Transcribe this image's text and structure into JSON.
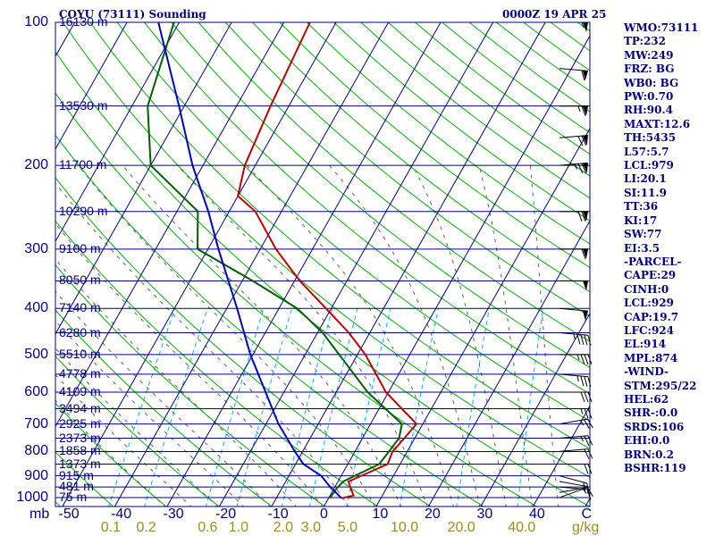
{
  "header": {
    "station": "COYU (73111) Sounding",
    "time": "0000Z 19 APR 25"
  },
  "indices": [
    "WMO:73111",
    "TP:232",
    "MW:249",
    "FRZ: BG",
    "WB0: BG",
    "PW:0.70",
    "RH:90.4",
    "MAXT:12.6",
    "TH:5435",
    "L57:5.7",
    "LCL:979",
    "LI:20.1",
    "SI:11.9",
    "TT:36",
    "KI:17",
    "SW:77",
    "EI:3.5",
    "-PARCEL-",
    "CAPE:29",
    "CINH:0",
    "LCL:929",
    "CAP:19.7",
    "LFC:924",
    "EL:914",
    "MPL:874",
    "-WIND-",
    "STM:295/22",
    "HEL:62",
    "SHR-:0.0",
    "SRDS:106",
    "EHI:0.0",
    "BRN:0.2",
    "BSHR:119"
  ],
  "axes": {
    "pressure_unit": "mb",
    "mixing_unit": "g/kg",
    "pressure_labels": [
      100,
      200,
      300,
      400,
      500,
      600,
      700,
      800,
      900,
      1000
    ],
    "temp_labels": [
      "-50",
      "-40",
      "-30",
      "-20",
      "-10",
      "0",
      "10",
      "20",
      "30",
      "40",
      "C"
    ],
    "temp_values": [
      -50,
      -40,
      -30,
      -20,
      -10,
      0,
      10,
      20,
      30,
      40,
      50
    ],
    "mixing_labels": [
      "0.1",
      "0.2",
      "0.6",
      "1.0",
      "2.0",
      "3.0",
      "5.0",
      "10.0",
      "20.0",
      "40.0"
    ],
    "mixing_values": [
      0.1,
      0.2,
      0.6,
      1.0,
      2.0,
      3.0,
      5.0,
      10.0,
      20.0,
      40.0
    ]
  },
  "height_levels": [
    {
      "p": 100,
      "label": "16130 m"
    },
    {
      "p": 150,
      "label": "13530 m"
    },
    {
      "p": 200,
      "label": "11700 m"
    },
    {
      "p": 250,
      "label": "10290 m"
    },
    {
      "p": 300,
      "label": "9100 m"
    },
    {
      "p": 350,
      "label": "8050 m"
    },
    {
      "p": 400,
      "label": "7140 m"
    },
    {
      "p": 450,
      "label": "6280 m"
    },
    {
      "p": 500,
      "label": "5510 m"
    },
    {
      "p": 550,
      "label": "4778 m"
    },
    {
      "p": 600,
      "label": "4109 m"
    },
    {
      "p": 650,
      "label": "3494 m"
    },
    {
      "p": 700,
      "label": "2925 m"
    },
    {
      "p": 750,
      "label": "2373 m"
    },
    {
      "p": 800,
      "label": "1858 m"
    },
    {
      "p": 850,
      "label": "1373 m"
    },
    {
      "p": 900,
      "label": "915 m"
    },
    {
      "p": 950,
      "label": "481 m"
    },
    {
      "p": 1000,
      "label": "75 m"
    }
  ],
  "colors": {
    "isobar": "#000080",
    "isotherm": "#000080",
    "dry_adiabat": "#00b000",
    "moist_adiabat": "#606060",
    "mixing_ratio": "#00b0ff",
    "temperature": "#c00000",
    "dewpoint": "#006000",
    "parcel": "#0000c0"
  },
  "chart_data": {
    "type": "skew-t log-p sounding",
    "title": "COYU (73111) Sounding",
    "subtitle": "0000Z 19 APR 25",
    "ylabel": "mb",
    "xlabel": "C",
    "ylim": [
      1050,
      100
    ],
    "xlim": [
      -50,
      50
    ],
    "series": [
      {
        "name": "temperature",
        "points": [
          {
            "p": 1003,
            "t": 2.5
          },
          {
            "p": 990,
            "t": 4.5
          },
          {
            "p": 957,
            "t": 3.2
          },
          {
            "p": 925,
            "t": 2.0
          },
          {
            "p": 850,
            "t": 7.6
          },
          {
            "p": 800,
            "t": 7.2
          },
          {
            "p": 750,
            "t": 8.0
          },
          {
            "p": 700,
            "t": 8.8
          },
          {
            "p": 600,
            "t": -0.5
          },
          {
            "p": 500,
            "t": -8.5
          },
          {
            "p": 450,
            "t": -14.0
          },
          {
            "p": 400,
            "t": -21.0
          },
          {
            "p": 350,
            "t": -29.0
          },
          {
            "p": 300,
            "t": -37.0
          },
          {
            "p": 250,
            "t": -45.0
          },
          {
            "p": 232,
            "t": -50.0
          },
          {
            "p": 200,
            "t": -52.0
          },
          {
            "p": 150,
            "t": -53.5
          },
          {
            "p": 100,
            "t": -55.0
          }
        ]
      },
      {
        "name": "dewpoint",
        "points": [
          {
            "p": 1003,
            "t": 0.3
          },
          {
            "p": 990,
            "t": 0.3
          },
          {
            "p": 957,
            "t": 0.5
          },
          {
            "p": 925,
            "t": 1.0
          },
          {
            "p": 850,
            "t": 6.0
          },
          {
            "p": 800,
            "t": 6.5
          },
          {
            "p": 750,
            "t": 7.0
          },
          {
            "p": 700,
            "t": 6.0
          },
          {
            "p": 600,
            "t": -4.0
          },
          {
            "p": 500,
            "t": -13.5
          },
          {
            "p": 450,
            "t": -19.0
          },
          {
            "p": 400,
            "t": -26.5
          },
          {
            "p": 350,
            "t": -38.0
          },
          {
            "p": 300,
            "t": -52.0
          },
          {
            "p": 250,
            "t": -56.0
          },
          {
            "p": 200,
            "t": -70.0
          },
          {
            "p": 150,
            "t": -77.0
          },
          {
            "p": 100,
            "t": -81.0
          }
        ]
      },
      {
        "name": "parcel",
        "points": [
          {
            "p": 1003,
            "t": 2.5
          },
          {
            "p": 950,
            "t": -0.9
          },
          {
            "p": 900,
            "t": -3.8
          },
          {
            "p": 850,
            "t": -8.5
          },
          {
            "p": 800,
            "t": -11.5
          },
          {
            "p": 700,
            "t": -17.6
          },
          {
            "p": 600,
            "t": -23.5
          },
          {
            "p": 500,
            "t": -30.5
          },
          {
            "p": 400,
            "t": -38.0
          },
          {
            "p": 300,
            "t": -48.0
          },
          {
            "p": 250,
            "t": -54.0
          },
          {
            "p": 200,
            "t": -62.0
          },
          {
            "p": 150,
            "t": -71.0
          },
          {
            "p": 100,
            "t": -84.0
          }
        ]
      }
    ],
    "winds": [
      {
        "p": 1000,
        "dir": 250,
        "spd": 5
      },
      {
        "p": 975,
        "dir": 260,
        "spd": 10
      },
      {
        "p": 950,
        "dir": 275,
        "spd": 10
      },
      {
        "p": 925,
        "dir": 280,
        "spd": 15
      },
      {
        "p": 900,
        "dir": 285,
        "spd": 15
      },
      {
        "p": 850,
        "dir": 270,
        "spd": 20
      },
      {
        "p": 800,
        "dir": 265,
        "spd": 20
      },
      {
        "p": 750,
        "dir": 265,
        "spd": 25
      },
      {
        "p": 700,
        "dir": 260,
        "spd": 25
      },
      {
        "p": 650,
        "dir": 270,
        "spd": 25
      },
      {
        "p": 600,
        "dir": 270,
        "spd": 30
      },
      {
        "p": 550,
        "dir": 275,
        "spd": 35
      },
      {
        "p": 500,
        "dir": 270,
        "spd": 35
      },
      {
        "p": 450,
        "dir": 275,
        "spd": 45
      },
      {
        "p": 400,
        "dir": 275,
        "spd": 50
      },
      {
        "p": 350,
        "dir": 270,
        "spd": 50
      },
      {
        "p": 300,
        "dir": 270,
        "spd": 60
      },
      {
        "p": 250,
        "dir": 270,
        "spd": 70
      },
      {
        "p": 200,
        "dir": 265,
        "spd": 75
      },
      {
        "p": 175,
        "dir": 265,
        "spd": 70
      },
      {
        "p": 150,
        "dir": 270,
        "spd": 65
      },
      {
        "p": 125,
        "dir": 275,
        "spd": 60
      },
      {
        "p": 100,
        "dir": 270,
        "spd": 55
      }
    ]
  }
}
